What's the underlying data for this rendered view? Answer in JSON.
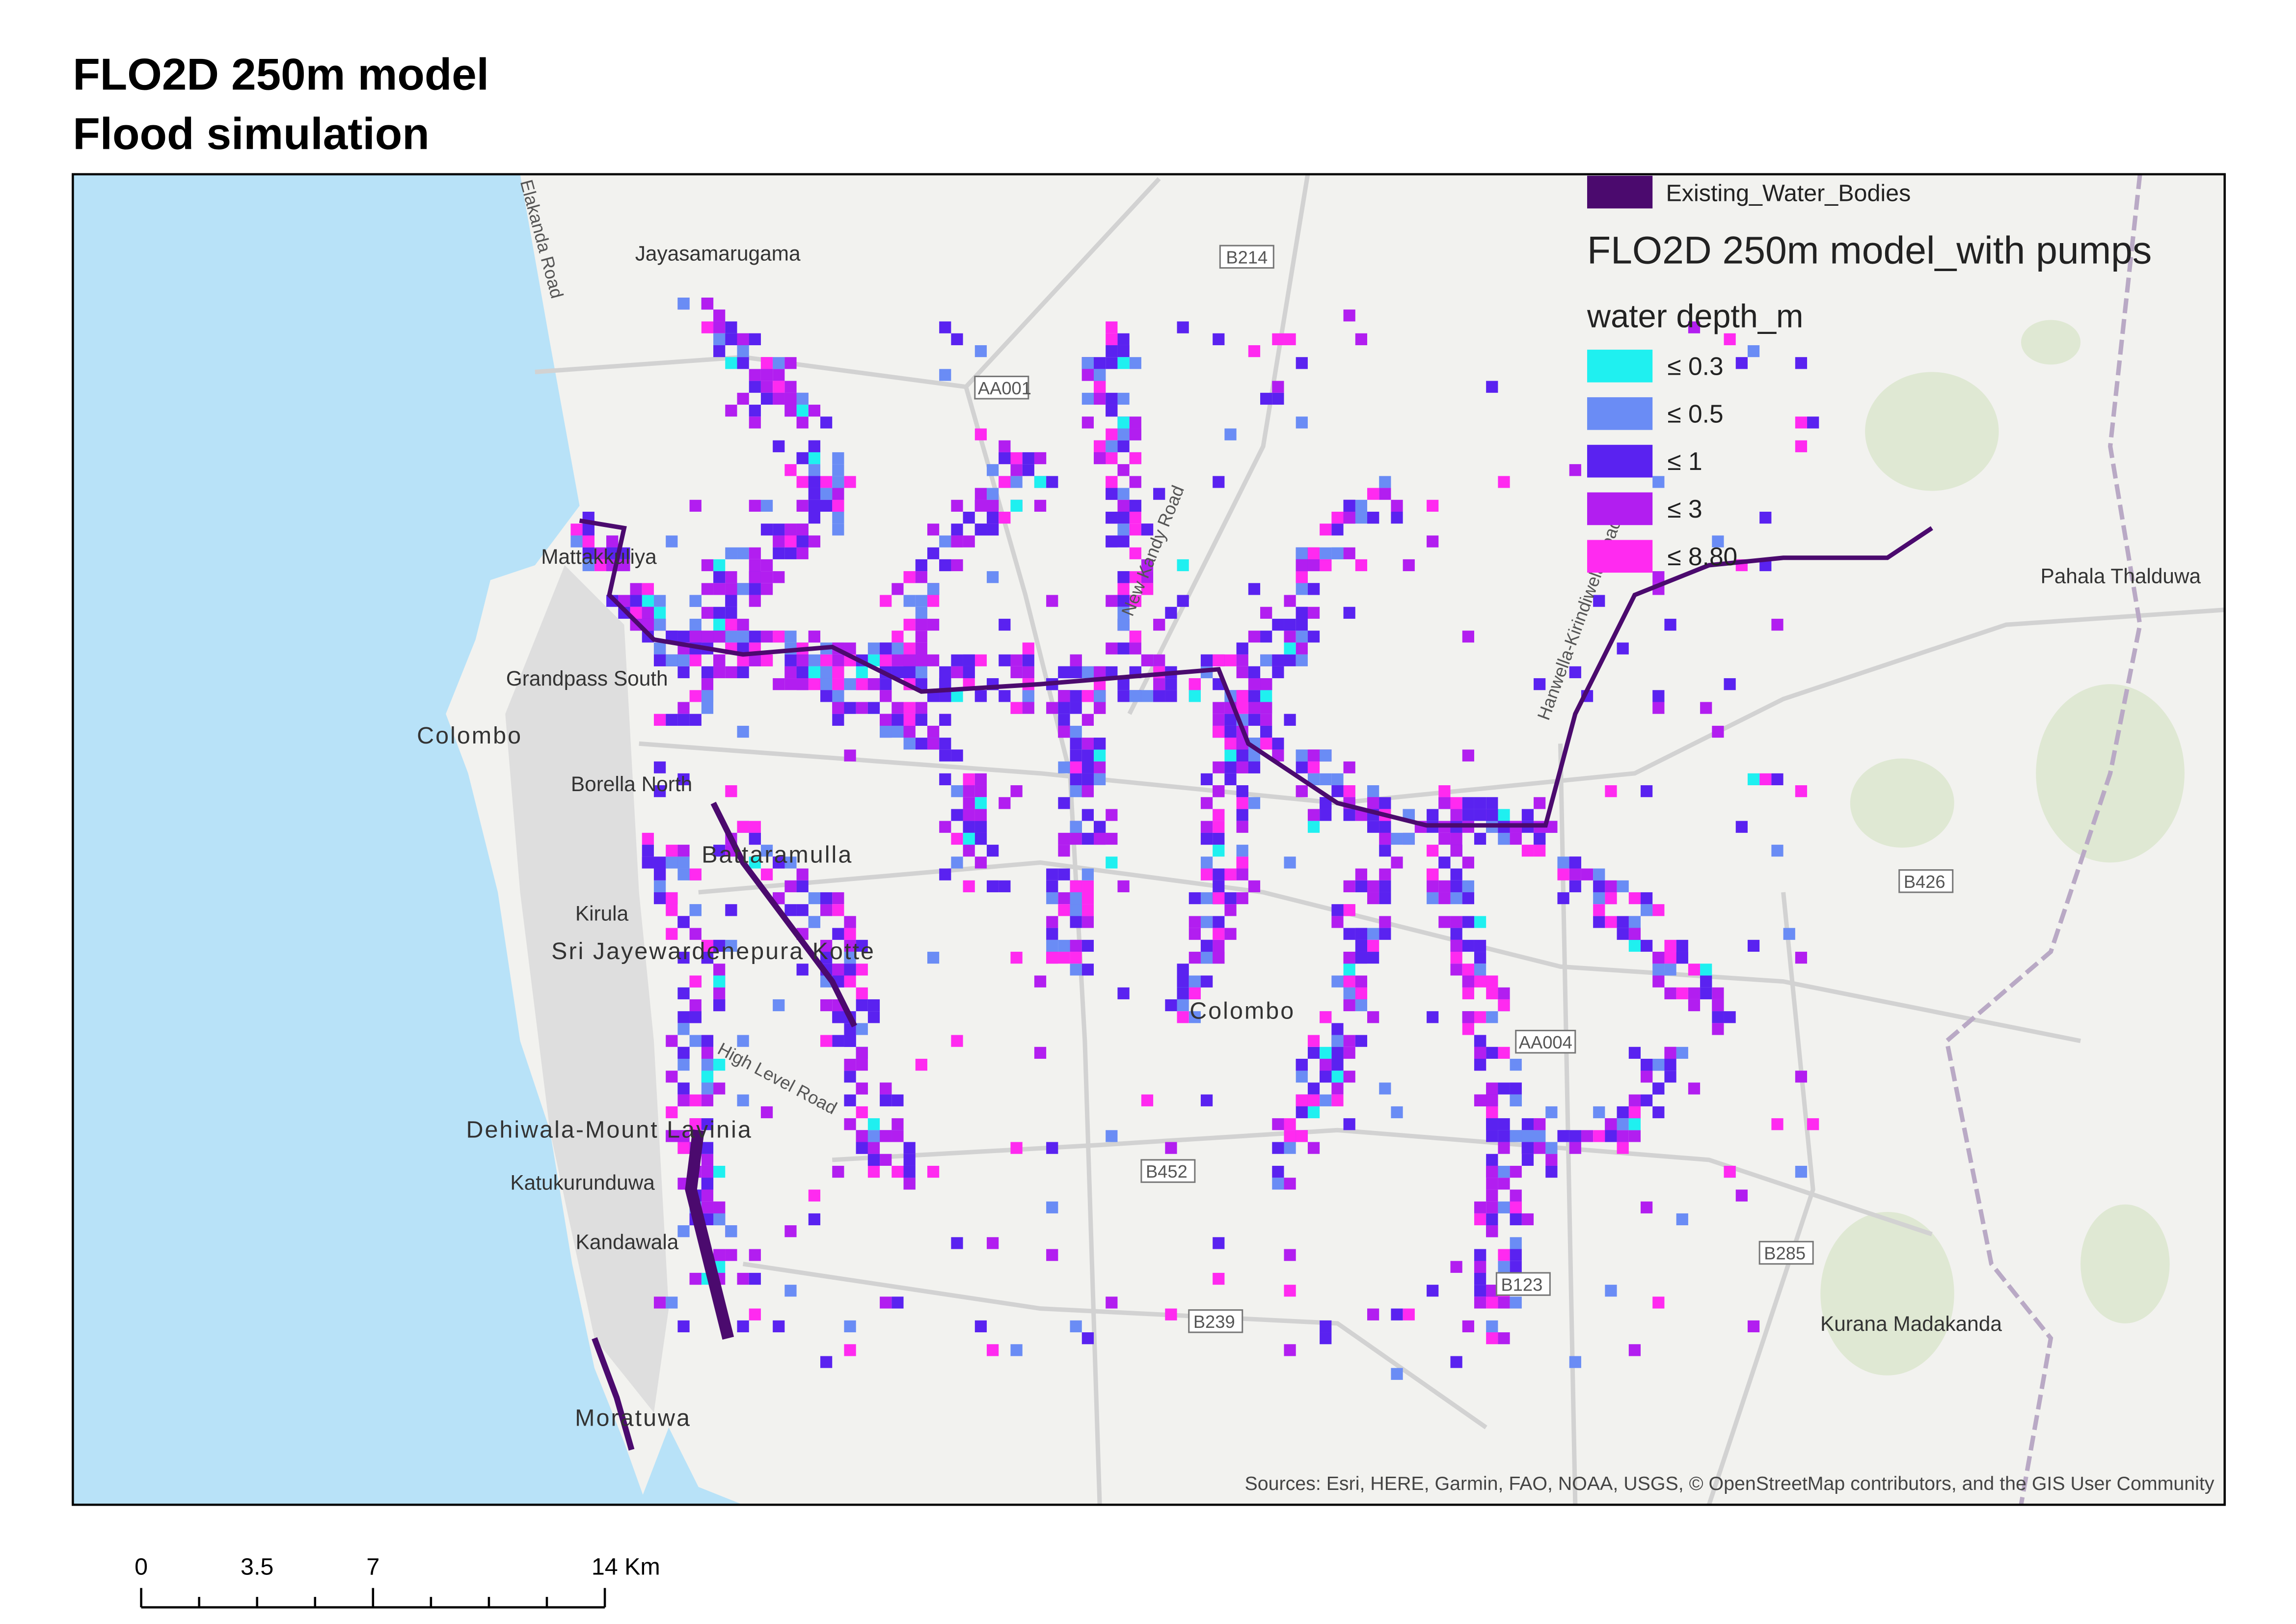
{
  "title": [
    "FLO2D 250m model",
    "Flood simulation"
  ],
  "legend": {
    "water_bodies": {
      "label": "Existing_Water_Bodies",
      "color": "#4b0a6e"
    },
    "layer_title": "FLO2D 250m model_with pumps",
    "field": "water depth_m",
    "classes": [
      {
        "label": "≤ 0.3",
        "color": "#1ff0f0"
      },
      {
        "label": "≤ 0.5",
        "color": "#6a8cf5"
      },
      {
        "label": "≤ 1",
        "color": "#5a22f0"
      },
      {
        "label": "≤ 3",
        "color": "#b21ef0"
      },
      {
        "label": "≤ 8.80",
        "color": "#ff2af0"
      }
    ]
  },
  "places": [
    "Jayasamarugama",
    "Mattakkuliya",
    "Grandpass South",
    "Colombo",
    "Borella North",
    "Battaramulla",
    "Kirula",
    "Sri Jayewardenepura Kotte",
    "Colombo",
    "Dehiwala-Mount Lavinia",
    "Katukurunduwa",
    "Kandawala",
    "Moratuwa",
    "Pahala Thalduwa",
    "Kurana Madakanda"
  ],
  "roads": [
    "Elakanda Road",
    "New Kandy Road",
    "Hanwella-Kirindiwela Road",
    "High Level Road",
    "B214",
    "AA001",
    "AA004",
    "B452",
    "B239",
    "B123",
    "B285",
    "B426"
  ],
  "scale_bar": [
    "0",
    "3.5",
    "7",
    "14 Km"
  ],
  "attribution": "Sources: Esri, HERE, Garmin, FAO, NOAA, USGS, © OpenStreetMap contributors, and the GIS User Community"
}
